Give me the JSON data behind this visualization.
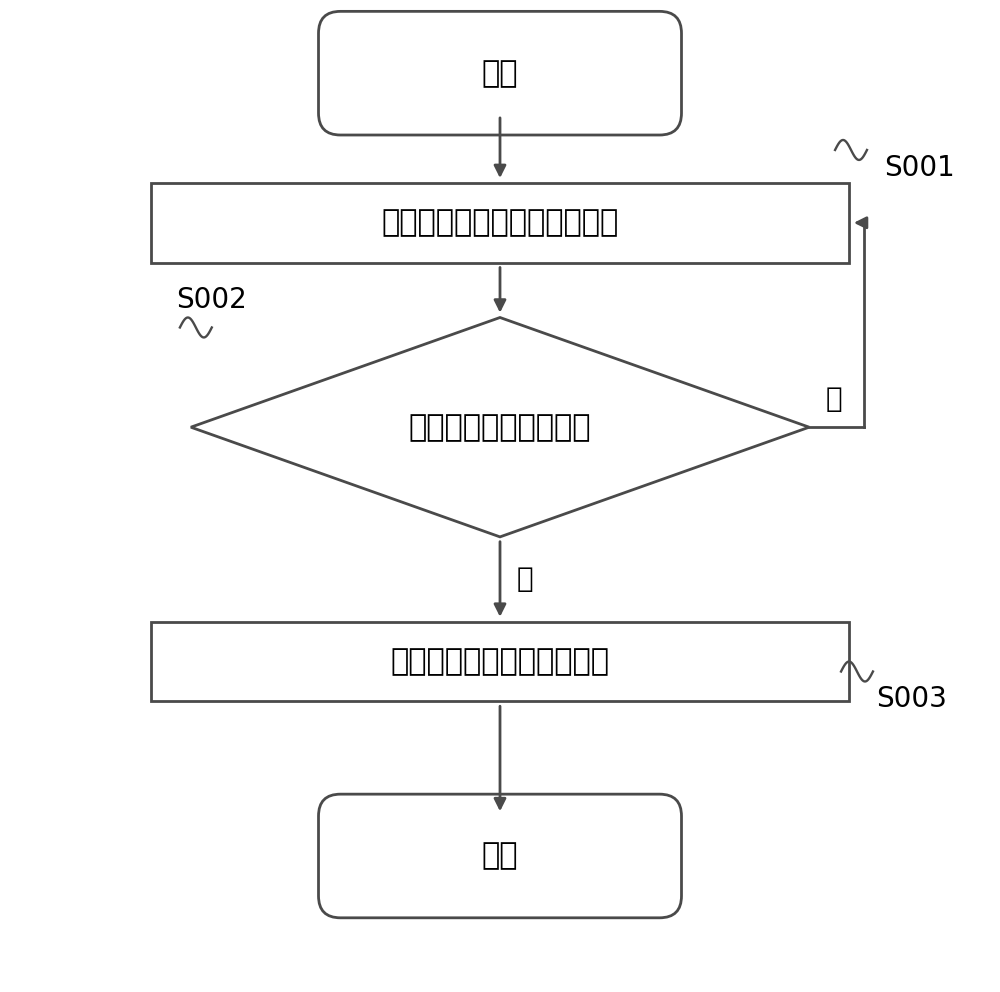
{
  "bg_color": "#ffffff",
  "line_color": "#4a4a4a",
  "text_color": "#000000",
  "font_size_main": 22,
  "font_size_label": 20,
  "start_text": "开始",
  "end_text": "结束",
  "box1_text": "接收振动开关产生的触发信号",
  "diamond_text": "判断触发信号是否有效",
  "box2_text": "根据触发信号生成动态密码",
  "label_s001": "S001",
  "label_s002": "S002",
  "label_s003": "S003",
  "yes_text": "是",
  "no_text": "否",
  "fig_width": 10.0,
  "fig_height": 9.92
}
